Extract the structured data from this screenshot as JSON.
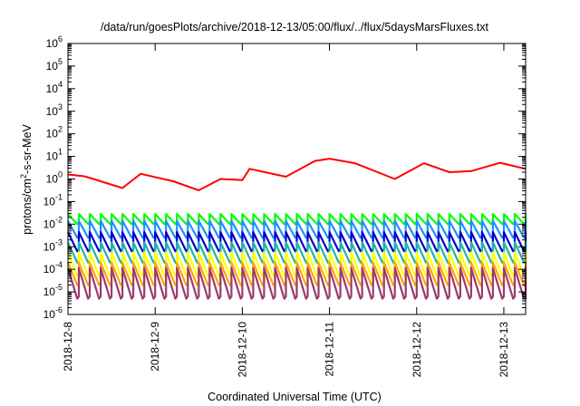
{
  "chart_data": {
    "type": "line",
    "title": "/data/run/goesPlots/archive/2018-12-13/05:00/flux/../flux/5daysMarsFluxes.txt",
    "xlabel": "Coordinated Universal Time (UTC)",
    "ylabel_base": "protons/cm",
    "ylabel_sup": "2",
    "ylabel_rest": "-s-sr-MeV",
    "y_scale": "log",
    "ylim_exp": [
      -6,
      6
    ],
    "y_ticks": [
      {
        "base": "10",
        "exp": "-6",
        "value": -6
      },
      {
        "base": "10",
        "exp": "-5",
        "value": -5
      },
      {
        "base": "10",
        "exp": "-4",
        "value": -4
      },
      {
        "base": "10",
        "exp": "-3",
        "value": -3
      },
      {
        "base": "10",
        "exp": "-2",
        "value": -2
      },
      {
        "base": "10",
        "exp": "-1",
        "value": -1
      },
      {
        "base": "10",
        "exp": "0",
        "value": 0
      },
      {
        "base": "10",
        "exp": "1",
        "value": 1
      },
      {
        "base": "10",
        "exp": "2",
        "value": 2
      },
      {
        "base": "10",
        "exp": "3",
        "value": 3
      },
      {
        "base": "10",
        "exp": "4",
        "value": 4
      },
      {
        "base": "10",
        "exp": "5",
        "value": 5
      },
      {
        "base": "10",
        "exp": "6",
        "value": 6
      }
    ],
    "xlim": [
      "2018-12-08T00:00",
      "2018-12-13T06:00"
    ],
    "x_ticks": [
      "2018-12-8",
      "2018-12-9",
      "2018-12-10",
      "2018-12-11",
      "2018-12-12",
      "2018-12-13"
    ],
    "grid": false,
    "series": [
      {
        "color": "#ff0000",
        "cycles_per_day": 1,
        "log10_points": [
          {
            "x": "2018-12-08T00:00",
            "y": 0.2
          },
          {
            "x": "2018-12-08T04:30",
            "y": 0.12
          },
          {
            "x": "2018-12-08T07:00",
            "y": 0.0
          },
          {
            "x": "2018-12-08T11:00",
            "y": -0.2
          },
          {
            "x": "2018-12-08T15:00",
            "y": -0.4
          },
          {
            "x": "2018-12-08T20:00",
            "y": 0.23
          },
          {
            "x": "2018-12-09T05:00",
            "y": -0.1
          },
          {
            "x": "2018-12-09T12:00",
            "y": -0.5
          },
          {
            "x": "2018-12-09T18:00",
            "y": 0.0
          },
          {
            "x": "2018-12-10T00:00",
            "y": -0.05
          },
          {
            "x": "2018-12-10T02:00",
            "y": 0.45
          },
          {
            "x": "2018-12-10T12:00",
            "y": 0.1
          },
          {
            "x": "2018-12-10T20:00",
            "y": 0.8
          },
          {
            "x": "2018-12-11T00:00",
            "y": 0.9
          },
          {
            "x": "2018-12-11T07:00",
            "y": 0.7
          },
          {
            "x": "2018-12-11T18:00",
            "y": 0.0
          },
          {
            "x": "2018-12-12T02:00",
            "y": 0.7
          },
          {
            "x": "2018-12-12T09:00",
            "y": 0.3
          },
          {
            "x": "2018-12-12T15:00",
            "y": 0.35
          },
          {
            "x": "2018-12-12T23:00",
            "y": 0.72
          },
          {
            "x": "2018-12-13T06:00",
            "y": 0.45
          }
        ]
      },
      {
        "color": "#00ff00",
        "log10_low": -2.0,
        "log10_high": -1.55,
        "cycles_per_day": 8
      },
      {
        "color": "#1e90ff",
        "log10_low": -2.6,
        "log10_high": -1.85,
        "cycles_per_day": 8
      },
      {
        "color": "#0000cd",
        "log10_low": -3.2,
        "log10_high": -2.35,
        "cycles_per_day": 8
      },
      {
        "color": "#20b2aa",
        "log10_low": -3.7,
        "log10_high": -2.8,
        "cycles_per_day": 8
      },
      {
        "color": "#ffff00",
        "log10_low": -4.3,
        "log10_high": -3.25,
        "cycles_per_day": 8
      },
      {
        "color": "#ffa500",
        "log10_low": -4.7,
        "log10_high": -3.7,
        "cycles_per_day": 8
      },
      {
        "color": "#9b3a6e",
        "log10_low": -5.3,
        "log10_high": -3.95,
        "cycles_per_day": 8
      }
    ]
  }
}
